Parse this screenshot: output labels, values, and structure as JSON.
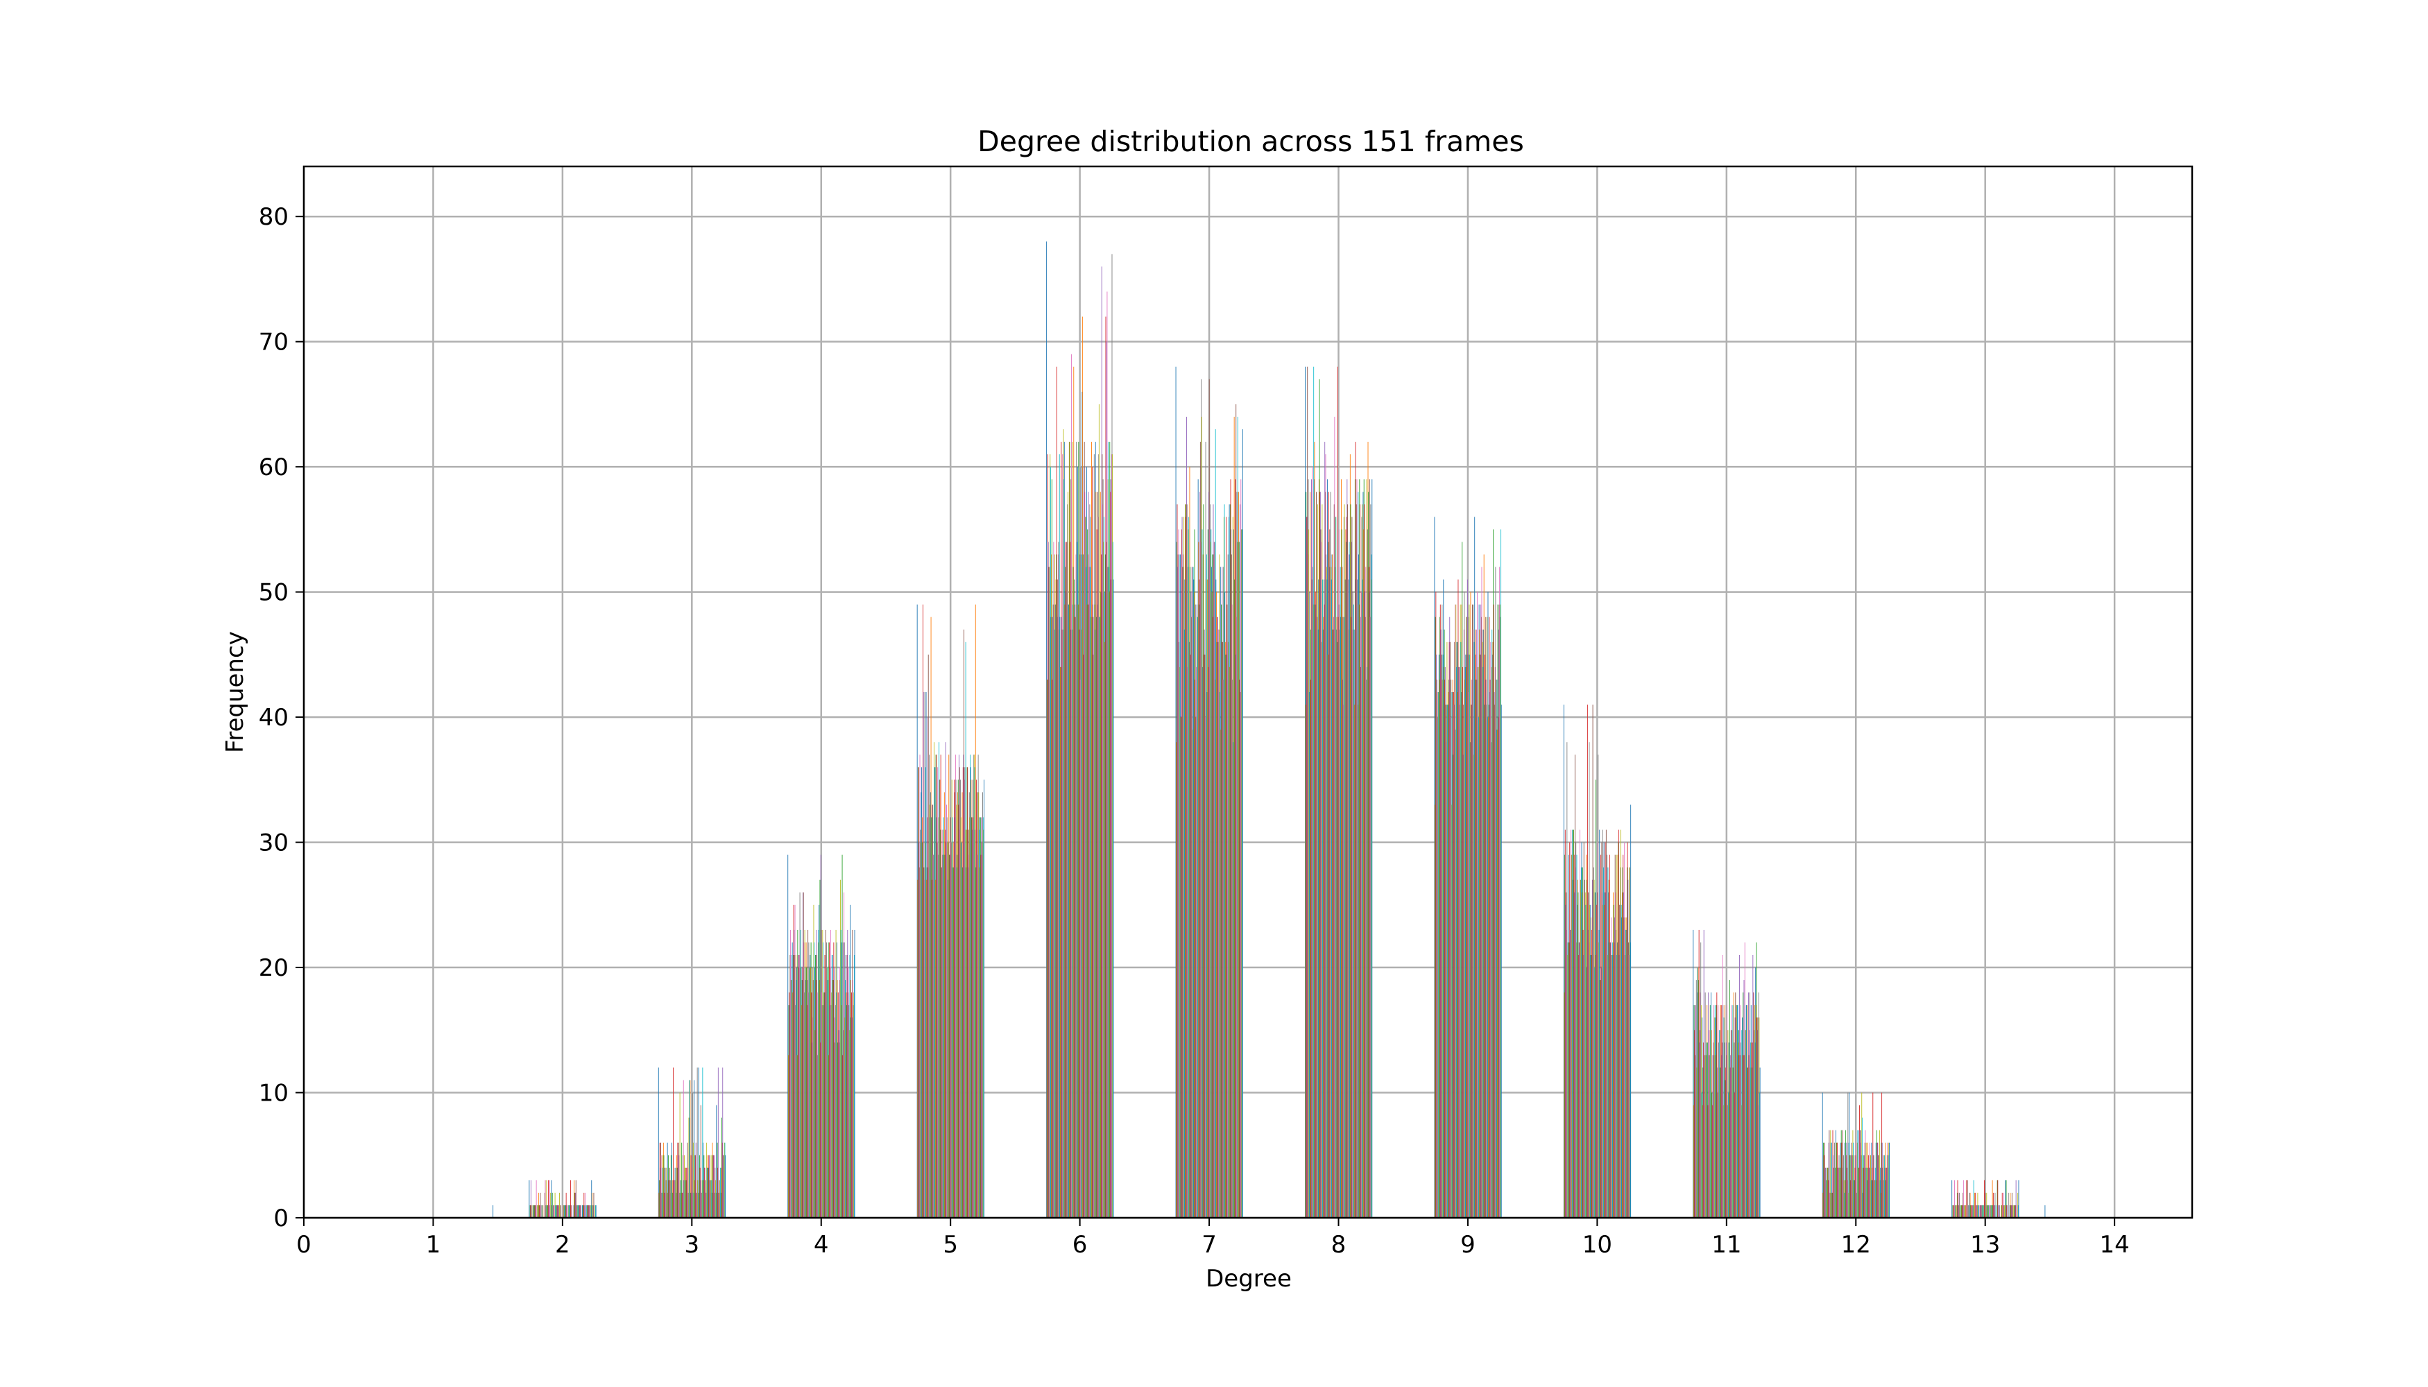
{
  "chart_data": {
    "type": "bar",
    "title": "Degree distribution across 151 frames",
    "xlabel": "Degree",
    "ylabel": "Frequency",
    "xlim": [
      0,
      14.6
    ],
    "ylim": [
      0,
      84
    ],
    "x_ticks": [
      "0",
      "1",
      "2",
      "3",
      "4",
      "5",
      "6",
      "7",
      "8",
      "9",
      "10",
      "11",
      "12",
      "13",
      "14"
    ],
    "y_ticks": [
      "0",
      "10",
      "20",
      "30",
      "40",
      "50",
      "60",
      "70",
      "80"
    ],
    "grid": true,
    "legend": "none",
    "frames": 151,
    "categories": [
      1.5,
      2,
      3,
      4,
      5,
      6,
      7,
      8,
      9,
      10,
      11,
      12,
      13,
      13.5
    ],
    "series_summary": {
      "min": [
        0,
        0,
        2,
        13,
        27,
        43,
        38,
        41,
        33,
        18,
        9,
        2,
        0,
        0
      ],
      "typical": [
        0,
        1,
        4,
        20,
        33,
        55,
        52,
        53,
        45,
        26,
        15,
        5,
        1,
        0
      ],
      "max": [
        1,
        3,
        12,
        29,
        49,
        78,
        68,
        68,
        56,
        41,
        23,
        10,
        3,
        1
      ]
    },
    "series_colors": [
      "#1f77b4",
      "#ff7f0e",
      "#2ca02c",
      "#d62728",
      "#9467bd",
      "#8c564b",
      "#e377c2",
      "#7f7f7f",
      "#bcbd22",
      "#17becf"
    ]
  }
}
